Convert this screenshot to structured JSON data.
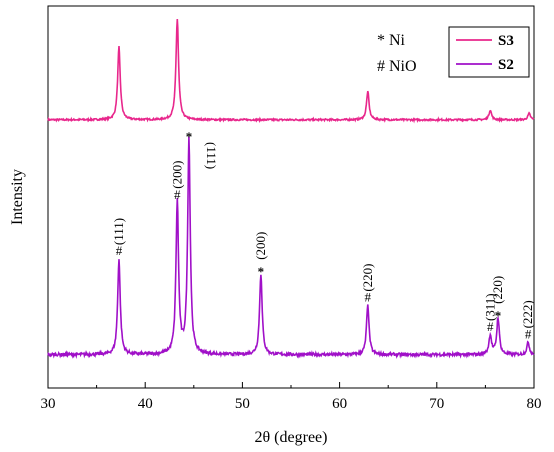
{
  "chart_data": {
    "type": "line",
    "xlabel": "2θ (degree)",
    "ylabel": "Intensity",
    "xlim": [
      30,
      80
    ],
    "x_ticks": [
      30,
      40,
      50,
      60,
      70,
      80
    ],
    "y_ticks_labeled": false,
    "grid": false,
    "legend_position": "top-right",
    "phase_key": [
      {
        "symbol": "*",
        "phase": "Ni"
      },
      {
        "symbol": "#",
        "phase": "NiO"
      }
    ],
    "series": [
      {
        "name": "S3",
        "color": "#e8278c",
        "baseline": 0.03,
        "peaks": [
          {
            "x": 37.3,
            "height": 0.52
          },
          {
            "x": 43.3,
            "height": 0.72
          },
          {
            "x": 62.9,
            "height": 0.2
          },
          {
            "x": 75.5,
            "height": 0.07
          },
          {
            "x": 79.5,
            "height": 0.045
          }
        ]
      },
      {
        "name": "S2",
        "color": "#a010c8",
        "baseline": 0.03,
        "peaks": [
          {
            "x": 37.3,
            "height": 0.39
          },
          {
            "x": 43.3,
            "height": 0.62
          },
          {
            "x": 44.5,
            "height": 0.88
          },
          {
            "x": 51.9,
            "height": 0.33
          },
          {
            "x": 62.9,
            "height": 0.2
          },
          {
            "x": 75.5,
            "height": 0.08
          },
          {
            "x": 76.3,
            "height": 0.15
          },
          {
            "x": 79.4,
            "height": 0.05
          }
        ]
      }
    ],
    "annotations": [
      {
        "x": 37.3,
        "series": "S2",
        "symbol": "#",
        "hkl": "(111)"
      },
      {
        "x": 43.3,
        "series": "S2",
        "symbol": "#",
        "hkl": "(200)"
      },
      {
        "x": 44.5,
        "series": "S2",
        "symbol": "*",
        "hkl": "(111)"
      },
      {
        "x": 51.9,
        "series": "S2",
        "symbol": "*",
        "hkl": "(200)"
      },
      {
        "x": 62.9,
        "series": "S2",
        "symbol": "#",
        "hkl": "(220)"
      },
      {
        "x": 75.5,
        "series": "S2",
        "symbol": "#",
        "hkl": "(311)"
      },
      {
        "x": 76.3,
        "series": "S2",
        "symbol": "*",
        "hkl": "(220)"
      },
      {
        "x": 79.4,
        "series": "S2",
        "symbol": "#",
        "hkl": "(222)"
      }
    ]
  }
}
